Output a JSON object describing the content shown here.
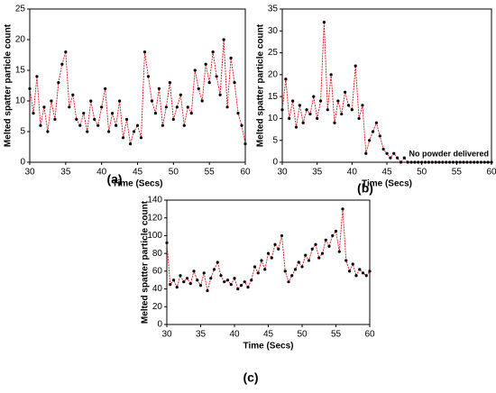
{
  "chart_data": [
    {
      "type": "line",
      "caption": "(a)",
      "x_label": "Time (Secs)",
      "y_label": "Melted spatter particle count",
      "xlim": [
        30,
        60
      ],
      "xticks": [
        30,
        35,
        40,
        45,
        50,
        55,
        60
      ],
      "ylim": [
        0,
        25
      ],
      "yticks": [
        0,
        5,
        10,
        15,
        20,
        25
      ],
      "x": [
        30,
        30.5,
        31,
        31.5,
        32,
        32.5,
        33,
        33.5,
        34,
        34.5,
        35,
        35.5,
        36,
        36.5,
        37,
        37.5,
        38,
        38.5,
        39,
        39.5,
        40,
        40.5,
        41,
        41.5,
        42,
        42.5,
        43,
        43.5,
        44,
        44.5,
        45,
        45.5,
        46,
        46.5,
        47,
        47.5,
        48,
        48.5,
        49,
        49.5,
        50,
        50.5,
        51,
        51.5,
        52,
        52.5,
        53,
        53.5,
        54,
        54.5,
        55,
        55.5,
        56,
        56.5,
        57,
        57.5,
        58,
        58.5,
        59,
        59.5,
        60
      ],
      "series": [
        {
          "color": "#e8101a",
          "values": [
            12,
            8,
            14,
            6,
            9,
            5,
            10,
            7,
            13,
            16,
            18,
            9,
            11,
            7,
            6,
            8,
            5,
            10,
            7,
            6,
            9,
            12,
            5,
            8,
            6,
            10,
            4,
            7,
            3,
            5,
            6,
            4,
            18,
            14,
            10,
            8,
            12,
            6,
            9,
            13,
            7,
            9,
            11,
            6,
            9,
            8,
            15,
            12,
            10,
            16,
            13,
            18,
            14,
            11,
            20,
            9,
            17,
            13,
            8,
            6,
            3
          ]
        }
      ]
    },
    {
      "type": "line",
      "caption": "(b)",
      "x_label": "Time (Secs)",
      "y_label": "Melted spatter particle count",
      "annotation": "No powder delivered",
      "xlim": [
        30,
        60
      ],
      "xticks": [
        30,
        35,
        40,
        45,
        50,
        55,
        60
      ],
      "ylim": [
        0,
        35
      ],
      "yticks": [
        0,
        5,
        10,
        15,
        20,
        25,
        30,
        35
      ],
      "x": [
        30,
        30.5,
        31,
        31.5,
        32,
        32.5,
        33,
        33.5,
        34,
        34.5,
        35,
        35.5,
        36,
        36.5,
        37,
        37.5,
        38,
        38.5,
        39,
        39.5,
        40,
        40.5,
        41,
        41.5,
        42,
        42.5,
        43,
        43.5,
        44,
        44.5,
        45,
        45.5,
        46,
        46.5,
        47,
        47.5,
        48,
        48.5,
        49,
        49.5,
        50,
        50.5,
        51,
        51.5,
        52,
        52.5,
        53,
        53.5,
        54,
        54.5,
        55,
        55.5,
        56,
        56.5,
        57,
        57.5,
        58,
        58.5,
        59,
        59.5,
        60
      ],
      "series": [
        {
          "color": "#e8101a",
          "values": [
            12,
            19,
            10,
            14,
            8,
            13,
            9,
            12,
            11,
            15,
            10,
            14,
            32,
            12,
            20,
            9,
            14,
            11,
            16,
            13,
            12,
            22,
            10,
            13,
            2,
            5,
            7,
            9,
            6,
            3,
            2,
            1,
            2,
            1,
            0,
            1,
            0,
            0,
            0,
            0,
            0,
            0,
            0,
            0,
            0,
            0,
            0,
            0,
            0,
            0,
            0,
            0,
            0,
            0,
            0,
            0,
            0,
            0,
            0,
            0,
            0
          ]
        }
      ]
    },
    {
      "type": "line",
      "caption": "(c)",
      "x_label": "Time (Secs)",
      "y_label": "Melted spatter particle count",
      "xlim": [
        30,
        60
      ],
      "xticks": [
        30,
        35,
        40,
        45,
        50,
        55,
        60
      ],
      "ylim": [
        0,
        140
      ],
      "yticks": [
        0,
        20,
        40,
        60,
        80,
        100,
        120,
        140
      ],
      "x": [
        30,
        30.5,
        31,
        31.5,
        32,
        32.5,
        33,
        33.5,
        34,
        34.5,
        35,
        35.5,
        36,
        36.5,
        37,
        37.5,
        38,
        38.5,
        39,
        39.5,
        40,
        40.5,
        41,
        41.5,
        42,
        42.5,
        43,
        43.5,
        44,
        44.5,
        45,
        45.5,
        46,
        46.5,
        47,
        47.5,
        48,
        48.5,
        49,
        49.5,
        50,
        50.5,
        51,
        51.5,
        52,
        52.5,
        53,
        53.5,
        54,
        54.5,
        55,
        55.5,
        56,
        56.5,
        57,
        57.5,
        58,
        58.5,
        59,
        59.5,
        60
      ],
      "series": [
        {
          "color": "#e8101a",
          "values": [
            92,
            45,
            50,
            42,
            55,
            48,
            52,
            46,
            60,
            50,
            44,
            58,
            38,
            52,
            62,
            70,
            55,
            48,
            50,
            45,
            52,
            40,
            44,
            48,
            42,
            50,
            65,
            58,
            72,
            62,
            80,
            75,
            90,
            85,
            100,
            60,
            48,
            55,
            62,
            70,
            65,
            78,
            72,
            85,
            90,
            75,
            80,
            95,
            88,
            100,
            105,
            82,
            130,
            72,
            60,
            68,
            55,
            62,
            58,
            55,
            60
          ]
        }
      ]
    }
  ]
}
